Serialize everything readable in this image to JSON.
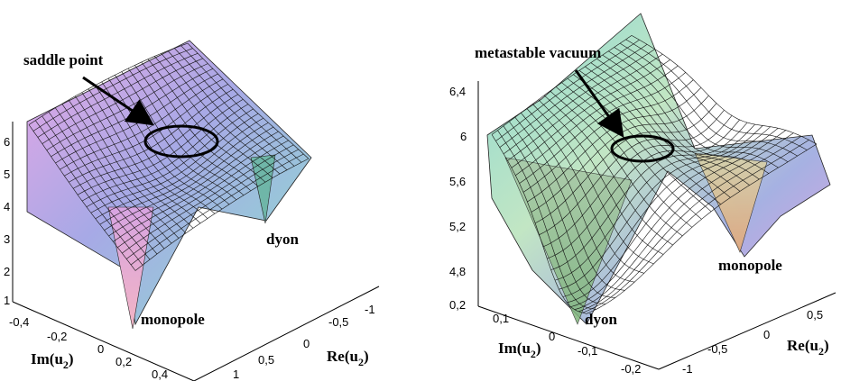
{
  "panels": [
    {
      "annotations": {
        "saddle": "saddle point",
        "dyon": "dyon",
        "monopole": "monopole"
      },
      "z_ticks": [
        "1",
        "2",
        "3",
        "4",
        "5",
        "6"
      ],
      "im_ticks": [
        "-0,4",
        "-0,2",
        "0",
        "0,2",
        "0,4"
      ],
      "re_ticks": [
        "-1",
        "-0,5",
        "0",
        "0,5",
        "1"
      ],
      "axis_labels": {
        "im_main": "Im(u",
        "im_sub": "2",
        "re_main": "Re(u",
        "re_sub": "2"
      }
    },
    {
      "annotations": {
        "metastable": "metastable vacuum",
        "dyon": "dyon",
        "monopole": "monopole"
      },
      "z_ticks": [
        "4,8",
        "5,2",
        "5,6",
        "6",
        "6,4"
      ],
      "z_extra_tick": "0,2",
      "im_ticks": [
        "0,1",
        "0",
        "-0,1",
        "-0,2"
      ],
      "re_ticks": [
        "0,5",
        "0",
        "-0,5",
        "-1"
      ],
      "axis_labels": {
        "im_main": "Im(u",
        "im_sub": "2",
        "re_main": "Re(u",
        "re_sub": "2"
      }
    }
  ]
}
